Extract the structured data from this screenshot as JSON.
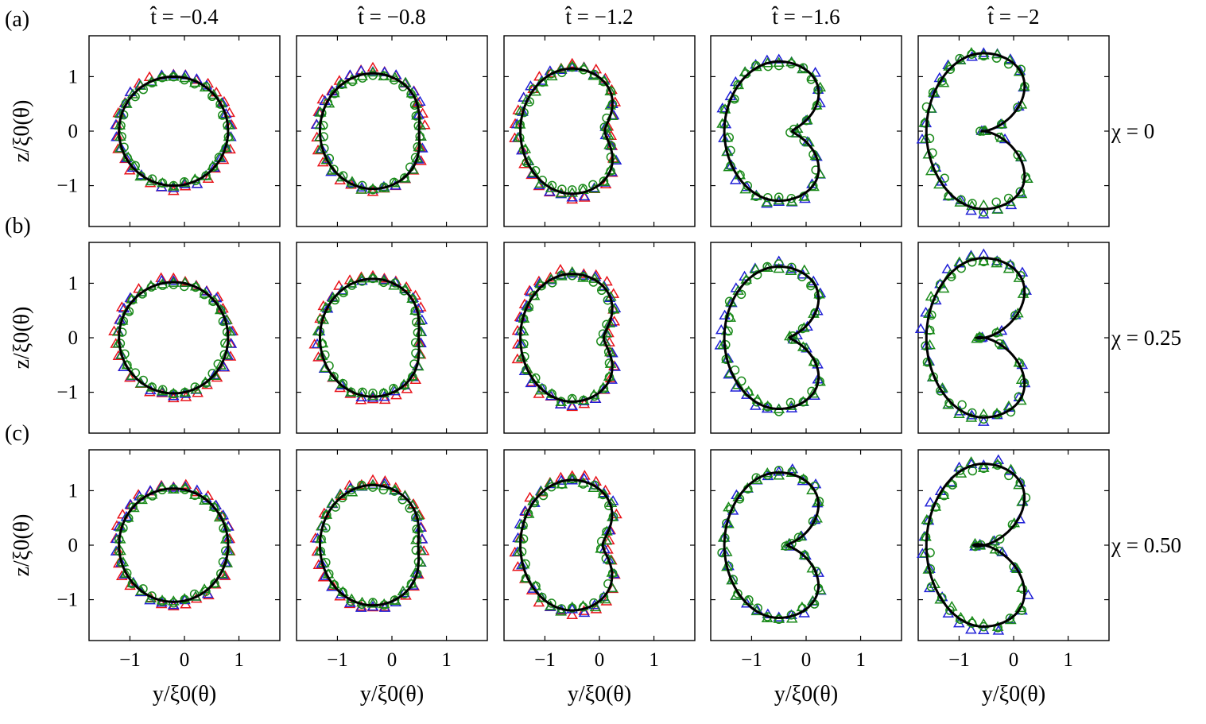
{
  "chart_data": {
    "type": "scatter",
    "title": "",
    "columns": [
      "t̂ = −0.4",
      "t̂ = −0.8",
      "t̂ = −1.2",
      "t̂ = −1.6",
      "t̂ = −2"
    ],
    "rows": [
      {
        "tag": "(a)",
        "label": "χ = 0"
      },
      {
        "tag": "(b)",
        "label": "χ = 0.25"
      },
      {
        "tag": "(c)",
        "label": "χ = 0.50"
      }
    ],
    "xlabel": "y/ξ0(θ)",
    "ylabel": "z/ξ0(θ)",
    "xlim": [
      -1.75,
      1.75
    ],
    "ylim": [
      -1.75,
      1.75
    ],
    "xticks": [
      -1,
      0,
      1
    ],
    "xtick_labels": [
      "−1",
      "0",
      "1"
    ],
    "yticks": [
      -1,
      0,
      1
    ],
    "ytick_labels": [
      "−1",
      "0",
      "1"
    ],
    "grid": false,
    "series_styles": [
      {
        "marker": "line",
        "color": "#000000"
      },
      {
        "marker": "triangle",
        "color": "#e8131a"
      },
      {
        "marker": "triangle",
        "color": "#1f1fd6"
      },
      {
        "marker": "triangle",
        "color": "#1a8a1a"
      },
      {
        "marker": "circle",
        "color": "#1a8a1a"
      }
    ],
    "panel_shapes": [
      {
        "cx": -0.2,
        "cy": 0.0,
        "rx": 1.0,
        "ry": 1.0,
        "dent": 0.0,
        "red": true
      },
      {
        "cx": -0.35,
        "cy": 0.0,
        "rx": 0.97,
        "ry": 1.05,
        "dent": 0.12,
        "red": true
      },
      {
        "cx": -0.5,
        "cy": 0.0,
        "rx": 0.95,
        "ry": 1.12,
        "dent": 0.35,
        "red": true
      },
      {
        "cx": -0.5,
        "cy": 0.0,
        "rx": 1.0,
        "ry": 1.22,
        "dent": 0.72,
        "red": false
      },
      {
        "cx": -0.55,
        "cy": 0.0,
        "rx": 1.05,
        "ry": 1.35,
        "dent": 1.0,
        "red": false
      }
    ]
  }
}
